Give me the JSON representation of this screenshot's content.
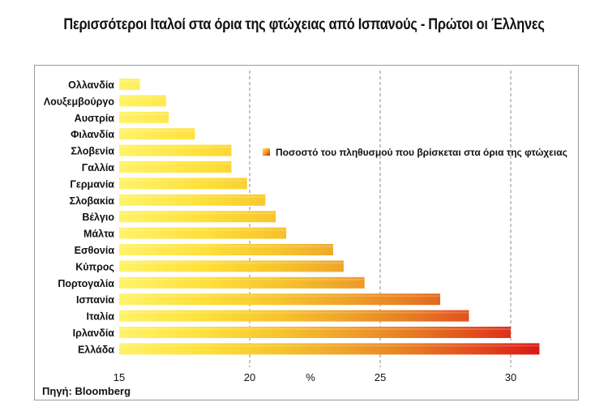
{
  "title": "Περισσότεροι Ιταλοί στα όρια της φτώχειας από Ισπανούς - Πρώτοι οι Έλληνες",
  "source": "Πηγή: Bloomberg",
  "chart_data": {
    "type": "bar",
    "orientation": "horizontal",
    "categories": [
      "Ολλανδία",
      "Λουξεμβούργο",
      "Αυστρία",
      "Φιλανδία",
      "Σλοβενία",
      "Γαλλία",
      "Γερμανία",
      "Σλοβακία",
      "Βέλγιο",
      "Μάλτα",
      "Εσθονία",
      "Κύπρος",
      "Πορτογαλία",
      "Ισπανία",
      "Ιταλία",
      "Ιρλανδία",
      "Ελλάδα"
    ],
    "series": [
      {
        "name": "Ποσοστό του πληθυσμού που βρίσκεται στα όρια της φτώχειας",
        "values": [
          15.8,
          16.8,
          16.9,
          17.9,
          19.3,
          19.3,
          19.9,
          20.6,
          21.0,
          21.4,
          23.2,
          23.6,
          24.4,
          27.3,
          28.4,
          30.0,
          31.1
        ]
      }
    ],
    "xlabel": "%",
    "xlim": [
      15,
      32
    ],
    "xticks": [
      15,
      20,
      25,
      30
    ],
    "grid_x": true,
    "legend": "right",
    "colors": {
      "start": "#ffe44d",
      "mid1": "#f5b81e",
      "mid2": "#e8771a",
      "end": "#e0181a"
    }
  }
}
